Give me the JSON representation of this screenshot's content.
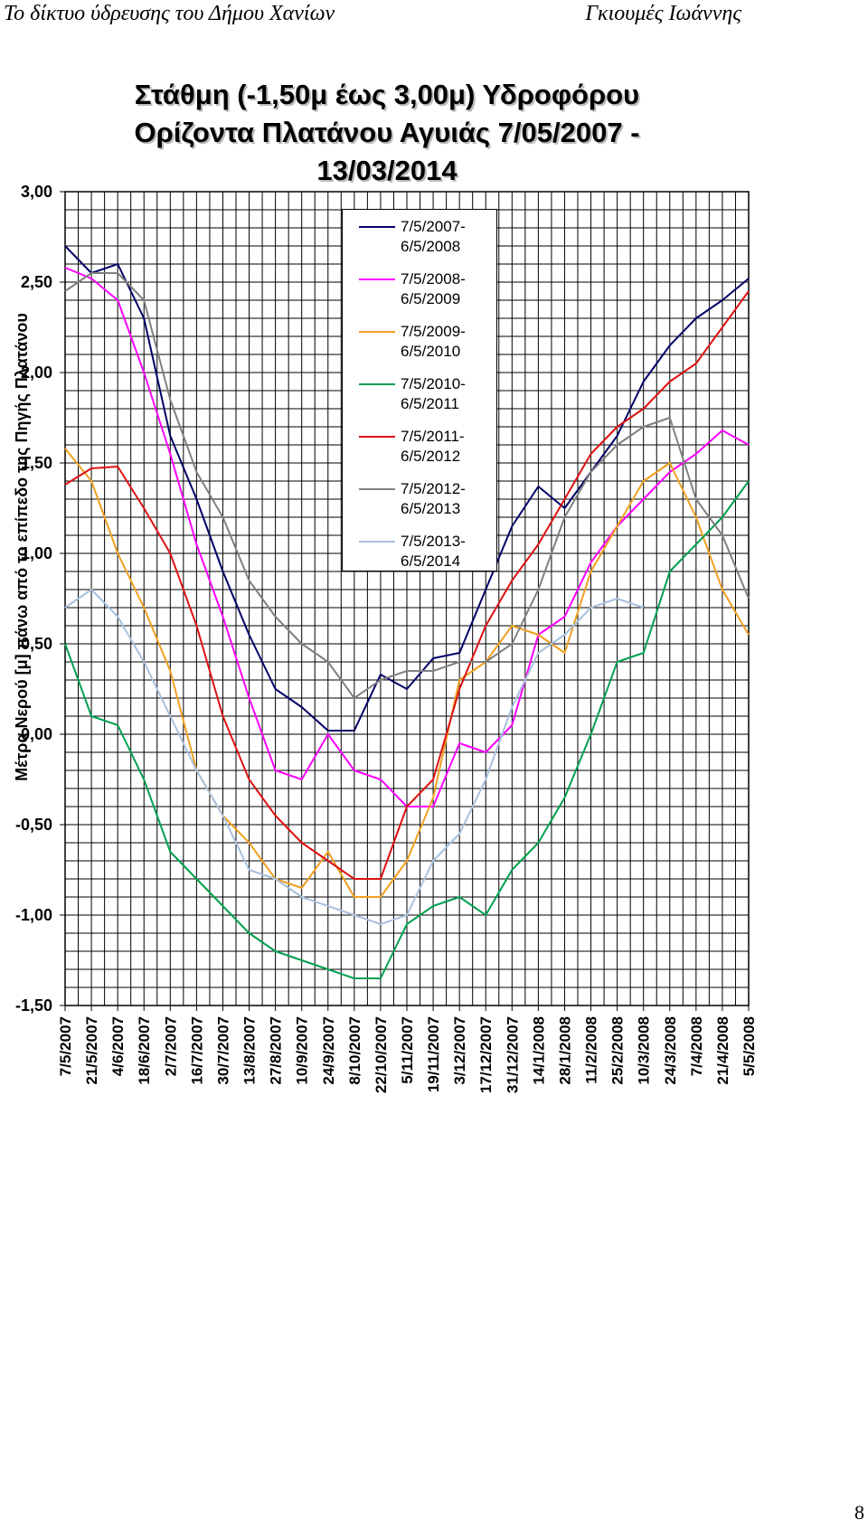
{
  "header": {
    "left": "Το δίκτυο ύδρευσης του Δήμου Χανίων",
    "right": "Γκιουμές Ιωάννης"
  },
  "page_number": "8",
  "chart_data": {
    "type": "line",
    "title": "Στάθμη (-1,50μ έως 3,00μ) Υδροφόρου Ορίζοντα Πλατάνου Αγυιάς 7/05/2007 - 13/03/2014",
    "y_label": "Μέτρα Νερού [μ] πάνω από το επίπεδο της Πηγής Πλατάνου",
    "categories": [
      "7/5/2007",
      "21/5/2007",
      "4/6/2007",
      "18/6/2007",
      "2/7/2007",
      "16/7/2007",
      "30/7/2007",
      "13/8/2007",
      "27/8/2007",
      "10/9/2007",
      "24/9/2007",
      "8/10/2007",
      "22/10/2007",
      "5/11/2007",
      "19/11/2007",
      "3/12/2007",
      "17/12/2007",
      "31/12/2007",
      "14/1/2008",
      "28/1/2008",
      "11/2/2008",
      "25/2/2008",
      "10/3/2008",
      "24/3/2008",
      "7/4/2008",
      "21/4/2008",
      "5/5/2008"
    ],
    "ylim": [
      -1.5,
      3.0
    ],
    "yticks": [
      {
        "value": -1.5,
        "label": "-1,50"
      },
      {
        "value": -1.0,
        "label": "-1,00"
      },
      {
        "value": -0.5,
        "label": "-0,50"
      },
      {
        "value": 0,
        "label": "0,00"
      },
      {
        "value": 0.5,
        "label": "0,50"
      },
      {
        "value": 1.0,
        "label": "1,00"
      },
      {
        "value": 1.5,
        "label": "1,50"
      },
      {
        "value": 2.0,
        "label": "2,00"
      },
      {
        "value": 2.5,
        "label": "2,50"
      },
      {
        "value": 3.0,
        "label": "3,00"
      }
    ],
    "grid": true,
    "series": [
      {
        "name": "7/5/2007-6/5/2008",
        "color": "#000066",
        "values": [
          2.7,
          2.55,
          2.6,
          2.3,
          1.65,
          1.3,
          0.9,
          0.55,
          0.25,
          0.15,
          0.02,
          0.02,
          0.33,
          0.25,
          0.42,
          0.45,
          0.8,
          1.15,
          1.37,
          1.25,
          1.45,
          1.65,
          1.95,
          2.15,
          2.3,
          2.4,
          2.52
        ]
      },
      {
        "name": "7/5/2008-6/5/2009",
        "color": "#ff00ff",
        "values": [
          2.58,
          2.52,
          2.4,
          2.0,
          1.55,
          1.05,
          0.65,
          0.2,
          -0.2,
          -0.25,
          0.0,
          -0.2,
          -0.25,
          -0.4,
          -0.4,
          -0.05,
          -0.1,
          0.05,
          0.55,
          0.65,
          0.95,
          1.15,
          1.3,
          1.45,
          1.55,
          1.68,
          1.6
        ]
      },
      {
        "name": "7/5/2009-6/5/2010",
        "color": "#f0a020",
        "values": [
          1.58,
          1.4,
          1.0,
          0.7,
          0.35,
          -0.2,
          -0.45,
          -0.6,
          -0.8,
          -0.85,
          -0.65,
          -0.9,
          -0.9,
          -0.7,
          -0.35,
          0.3,
          0.4,
          0.6,
          0.55,
          0.45,
          0.9,
          1.15,
          1.4,
          1.5,
          1.2,
          0.8,
          0.55
        ]
      },
      {
        "name": "7/5/2010-6/5/2011",
        "color": "#00a050",
        "values": [
          0.5,
          0.1,
          0.05,
          -0.25,
          -0.65,
          -0.8,
          -0.95,
          -1.1,
          -1.2,
          -1.25,
          -1.3,
          -1.35,
          -1.35,
          -1.05,
          -0.95,
          -0.9,
          -1.0,
          -0.75,
          -0.6,
          -0.35,
          0.0,
          0.4,
          0.45,
          0.9,
          1.05,
          1.2,
          1.4
        ]
      },
      {
        "name": "7/5/2011-6/5/2012",
        "color": "#dd1111",
        "values": [
          1.38,
          1.47,
          1.48,
          1.25,
          1.0,
          0.6,
          0.1,
          -0.25,
          -0.45,
          -0.6,
          -0.7,
          -0.8,
          -0.8,
          -0.4,
          -0.25,
          0.25,
          0.6,
          0.85,
          1.05,
          1.3,
          1.55,
          1.7,
          1.8,
          1.95,
          2.05,
          2.25,
          2.45
        ]
      },
      {
        "name": "7/5/2012-6/5/2013",
        "color": "#808080",
        "values": [
          2.45,
          2.55,
          2.55,
          2.4,
          1.85,
          1.45,
          1.2,
          0.85,
          0.65,
          0.5,
          0.4,
          0.2,
          0.3,
          0.35,
          0.35,
          0.4,
          0.4,
          0.5,
          0.8,
          1.2,
          1.45,
          1.6,
          1.7,
          1.75,
          1.3,
          1.1,
          0.75
        ]
      },
      {
        "name": "7/5/2013-6/5/2014",
        "color": "#a8c0dc",
        "values": [
          0.7,
          0.8,
          0.65,
          0.4,
          0.1,
          -0.2,
          -0.45,
          -0.75,
          -0.8,
          -0.9,
          -0.95,
          -1.0,
          -1.05,
          -1.0,
          -0.7,
          -0.55,
          -0.25,
          0.15,
          0.45,
          0.55,
          0.7,
          0.75,
          0.7,
          null,
          null,
          null,
          null
        ]
      }
    ]
  }
}
